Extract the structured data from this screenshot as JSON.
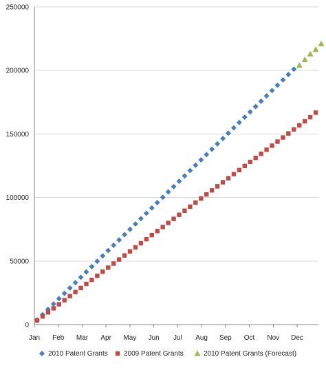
{
  "chart_data": {
    "type": "scatter",
    "x_categories": [
      "Jan",
      "Feb",
      "Mar",
      "Apr",
      "May",
      "Jun",
      "Jul",
      "Aug",
      "Sep",
      "Oct",
      "Nov",
      "Dec"
    ],
    "ylim": [
      0,
      250000
    ],
    "y_ticks": [
      "0",
      "50000",
      "100000",
      "150000",
      "200000",
      "250000"
    ],
    "grid": "horizontal",
    "legend_position": "bottom",
    "series": [
      {
        "name": "2010 Patent Grants",
        "color": "#4a7ebb",
        "marker": "diamond",
        "x_weeks": [
          0,
          1,
          2,
          3,
          4,
          5,
          6,
          7,
          8,
          9,
          10,
          11,
          12,
          13,
          14,
          15,
          16,
          17,
          18,
          19,
          20,
          21,
          22,
          23,
          24,
          25,
          26,
          27,
          28,
          29,
          30,
          31,
          32,
          33,
          34,
          35,
          36,
          37,
          38,
          39,
          40,
          41,
          42,
          43,
          44,
          45,
          46,
          47
        ],
        "values": [
          3700,
          7800,
          12000,
          16200,
          20400,
          24600,
          28800,
          33000,
          37200,
          41400,
          45600,
          49800,
          54000,
          58200,
          62400,
          66600,
          70800,
          75000,
          79200,
          83400,
          87600,
          91800,
          96000,
          100200,
          104400,
          108600,
          112800,
          117000,
          121200,
          125400,
          129600,
          133800,
          138000,
          142200,
          146400,
          150600,
          154800,
          159000,
          163200,
          167400,
          171600,
          175800,
          180000,
          184200,
          188400,
          192600,
          196800,
          201000
        ]
      },
      {
        "name": "2009 Patent Grants",
        "color": "#be4b48",
        "marker": "square",
        "x_weeks": [
          0,
          1,
          2,
          3,
          4,
          5,
          6,
          7,
          8,
          9,
          10,
          11,
          12,
          13,
          14,
          15,
          16,
          17,
          18,
          19,
          20,
          21,
          22,
          23,
          24,
          25,
          26,
          27,
          28,
          29,
          30,
          31,
          32,
          33,
          34,
          35,
          36,
          37,
          38,
          39,
          40,
          41,
          42,
          43,
          44,
          45,
          46,
          47,
          48,
          49,
          50,
          51
        ],
        "values": [
          3200,
          6400,
          9600,
          12800,
          16000,
          19200,
          22400,
          25600,
          28800,
          32000,
          35200,
          38400,
          41600,
          44800,
          48000,
          51200,
          54400,
          57600,
          60800,
          64000,
          67200,
          70400,
          73600,
          76800,
          80000,
          83200,
          86400,
          89600,
          92800,
          96000,
          99200,
          102400,
          105600,
          108800,
          112000,
          115200,
          118400,
          121600,
          124800,
          128000,
          131200,
          134400,
          137600,
          140800,
          144000,
          147200,
          150400,
          153600,
          156800,
          160000,
          163200,
          166800
        ]
      },
      {
        "name": "2010 Patent Grants (Forecast)",
        "color": "#98b954",
        "marker": "triangle",
        "x_weeks": [
          48,
          49,
          50,
          51,
          52
        ],
        "values": [
          204000,
          208500,
          213000,
          216500,
          221000
        ]
      }
    ]
  }
}
